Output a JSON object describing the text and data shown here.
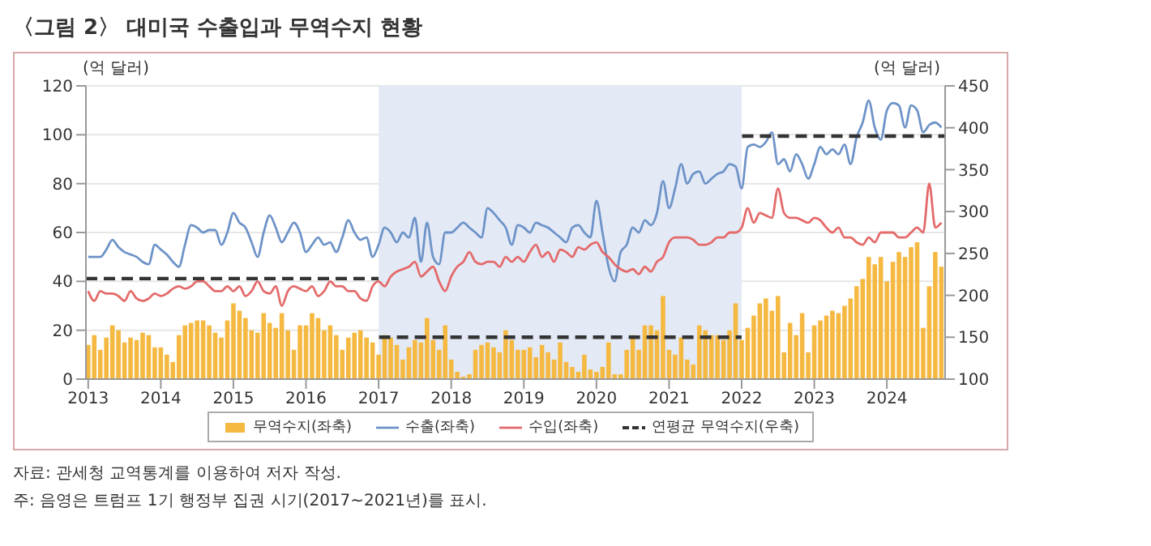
{
  "chart_data": {
    "type": "bar",
    "title": "〈그림 2〉 대미국 수출입과 무역수지 현황",
    "ylabel": "(억 달러)",
    "y2label": "(억 달러)",
    "annotations": [
      "자료: 관세청 교역통계를 이용하여 저자 작성.",
      "주: 음영은 트럼프 1기 행정부 집권 시기(2017~2021년)를 표시."
    ],
    "x": [
      "2013-01",
      "2013-02",
      "2013-03",
      "2013-04",
      "2013-05",
      "2013-06",
      "2013-07",
      "2013-08",
      "2013-09",
      "2013-10",
      "2013-11",
      "2013-12",
      "2014-01",
      "2014-02",
      "2014-03",
      "2014-04",
      "2014-05",
      "2014-06",
      "2014-07",
      "2014-08",
      "2014-09",
      "2014-10",
      "2014-11",
      "2014-12",
      "2015-01",
      "2015-02",
      "2015-03",
      "2015-04",
      "2015-05",
      "2015-06",
      "2015-07",
      "2015-08",
      "2015-09",
      "2015-10",
      "2015-11",
      "2015-12",
      "2016-01",
      "2016-02",
      "2016-03",
      "2016-04",
      "2016-05",
      "2016-06",
      "2016-07",
      "2016-08",
      "2016-09",
      "2016-10",
      "2016-11",
      "2016-12",
      "2017-01",
      "2017-02",
      "2017-03",
      "2017-04",
      "2017-05",
      "2017-06",
      "2017-07",
      "2017-08",
      "2017-09",
      "2017-10",
      "2017-11",
      "2017-12",
      "2018-01",
      "2018-02",
      "2018-03",
      "2018-04",
      "2018-05",
      "2018-06",
      "2018-07",
      "2018-08",
      "2018-09",
      "2018-10",
      "2018-11",
      "2018-12",
      "2019-01",
      "2019-02",
      "2019-03",
      "2019-04",
      "2019-05",
      "2019-06",
      "2019-07",
      "2019-08",
      "2019-09",
      "2019-10",
      "2019-11",
      "2019-12",
      "2020-01",
      "2020-02",
      "2020-03",
      "2020-04",
      "2020-05",
      "2020-06",
      "2020-07",
      "2020-08",
      "2020-09",
      "2020-10",
      "2020-11",
      "2020-12",
      "2021-01",
      "2021-02",
      "2021-03",
      "2021-04",
      "2021-05",
      "2021-06",
      "2021-07",
      "2021-08",
      "2021-09",
      "2021-10",
      "2021-11",
      "2021-12",
      "2022-01",
      "2022-02",
      "2022-03",
      "2022-04",
      "2022-05",
      "2022-06",
      "2022-07",
      "2022-08",
      "2022-09",
      "2022-10",
      "2022-11",
      "2022-12",
      "2023-01",
      "2023-02",
      "2023-03",
      "2023-04",
      "2023-05",
      "2023-06",
      "2023-07",
      "2023-08",
      "2023-09",
      "2023-10",
      "2023-11",
      "2023-12",
      "2024-01",
      "2024-02",
      "2024-03",
      "2024-04",
      "2024-05",
      "2024-06",
      "2024-07",
      "2024-08",
      "2024-09",
      "2024-10"
    ],
    "series": [
      {
        "name": "무역수지(좌축)",
        "color": "#f5b942",
        "values": [
          14,
          18,
          12,
          17,
          22,
          20,
          15,
          17,
          16,
          19,
          18,
          13,
          13,
          10,
          7,
          18,
          22,
          23,
          24,
          24,
          22,
          19,
          17,
          24,
          31,
          28,
          25,
          20,
          19,
          27,
          23,
          21,
          27,
          20,
          12,
          22,
          22,
          27,
          25,
          20,
          22,
          18,
          12,
          17,
          19,
          20,
          17,
          15,
          10,
          18,
          17,
          14,
          8,
          13,
          16,
          15,
          25,
          16,
          12,
          22,
          8,
          3,
          1,
          2,
          12,
          14,
          15,
          13,
          11,
          20,
          16,
          12,
          12,
          13,
          9,
          14,
          11,
          8,
          15,
          7,
          5,
          3,
          10,
          4,
          3,
          5,
          15,
          2,
          2,
          12,
          18,
          12,
          22,
          22,
          20,
          34,
          12,
          10,
          17,
          8,
          6,
          22,
          20,
          18,
          18,
          16,
          20,
          31,
          16,
          21,
          26,
          31,
          33,
          28,
          34,
          11,
          23,
          18,
          27,
          11,
          22,
          24,
          26,
          28,
          27,
          30,
          33,
          38,
          41,
          50,
          47,
          50,
          40,
          48,
          52,
          50,
          54,
          56,
          21,
          38,
          52,
          46
        ]
      },
      {
        "name": "수출(좌축)",
        "type": "line",
        "color": "#6e93c8",
        "values": [
          50,
          50,
          50,
          53,
          57,
          54,
          52,
          51,
          50,
          48,
          47,
          55,
          53,
          51,
          48,
          46,
          55,
          63,
          62,
          60,
          61,
          61,
          55,
          60,
          68,
          64,
          62,
          56,
          50,
          60,
          67,
          62,
          56,
          60,
          64,
          60,
          52,
          55,
          58,
          55,
          56,
          52,
          58,
          65,
          60,
          57,
          58,
          50,
          55,
          62,
          60,
          56,
          60,
          58,
          66,
          48,
          64,
          50,
          47,
          60,
          60,
          62,
          64,
          62,
          60,
          58,
          70,
          68,
          65,
          62,
          55,
          63,
          62,
          60,
          64,
          63,
          62,
          60,
          58,
          56,
          62,
          63,
          60,
          58,
          73,
          60,
          46,
          40,
          52,
          55,
          62,
          60,
          65,
          63,
          68,
          81,
          70,
          78,
          88,
          80,
          84,
          85,
          80,
          82,
          84,
          85,
          88,
          87,
          78,
          95,
          96,
          95,
          97,
          101,
          88,
          90,
          85,
          92,
          88,
          82,
          88,
          95,
          92,
          94,
          92,
          96,
          88,
          99,
          105,
          114,
          103,
          98,
          110,
          113,
          112,
          103,
          112,
          110,
          101,
          104,
          105,
          103
        ]
      },
      {
        "name": "수입(좌축)",
        "type": "line",
        "color": "#e46a6a",
        "values": [
          36,
          32,
          36,
          35,
          35,
          34,
          32,
          36,
          33,
          32,
          33,
          35,
          34,
          35,
          37,
          38,
          37,
          38,
          40,
          40,
          38,
          36,
          36,
          38,
          36,
          38,
          34,
          36,
          40,
          36,
          35,
          38,
          30,
          36,
          38,
          37,
          36,
          38,
          34,
          36,
          40,
          38,
          38,
          36,
          36,
          33,
          32,
          38,
          40,
          38,
          42,
          44,
          45,
          46,
          48,
          42,
          44,
          46,
          40,
          36,
          42,
          46,
          48,
          52,
          48,
          47,
          48,
          48,
          46,
          50,
          48,
          50,
          48,
          52,
          55,
          50,
          52,
          48,
          53,
          52,
          50,
          54,
          53,
          55,
          56,
          52,
          50,
          47,
          45,
          44,
          45,
          43,
          46,
          44,
          48,
          50,
          56,
          58,
          58,
          58,
          57,
          55,
          55,
          56,
          58,
          58,
          60,
          60,
          62,
          70,
          64,
          68,
          67,
          66,
          78,
          68,
          66,
          66,
          65,
          64,
          66,
          65,
          62,
          60,
          62,
          58,
          58,
          56,
          55,
          58,
          56,
          60,
          60,
          60,
          58,
          58,
          60,
          62,
          60,
          80,
          62,
          64
        ]
      },
      {
        "name": "연평균 무역수지(우축)",
        "type": "line",
        "axis": "y2",
        "color": "#333333",
        "line_style": "dashed",
        "x": [
          "2012-12-20",
          "2016-12-31",
          "2017-01-01",
          "2017-01-03",
          "2021-12-31",
          "2022-01-01",
          "2022-01-03",
          "2024-10-20"
        ],
        "values": [
          220,
          220,
          null,
          150,
          150,
          null,
          390,
          390
        ]
      }
    ],
    "xlim": [
      "2012-12-20",
      "2024-10-20"
    ],
    "xticks": [
      "2013",
      "2014",
      "2015",
      "2016",
      "2017",
      "2018",
      "2019",
      "2020",
      "2021",
      "2022",
      "2023",
      "2024"
    ],
    "ylim": [
      0,
      120
    ],
    "yticks": [
      0,
      20,
      40,
      60,
      80,
      100,
      120
    ],
    "y2lim": [
      100,
      450
    ],
    "y2ticks": [
      100,
      150,
      200,
      250,
      300,
      350,
      400,
      450
    ],
    "bands": [
      {
        "axis": "x",
        "from": "2017-01",
        "to": "2022-01",
        "color": "#e3eaf6"
      }
    ],
    "grid": "y",
    "legend": "bottom",
    "marker": "none"
  }
}
